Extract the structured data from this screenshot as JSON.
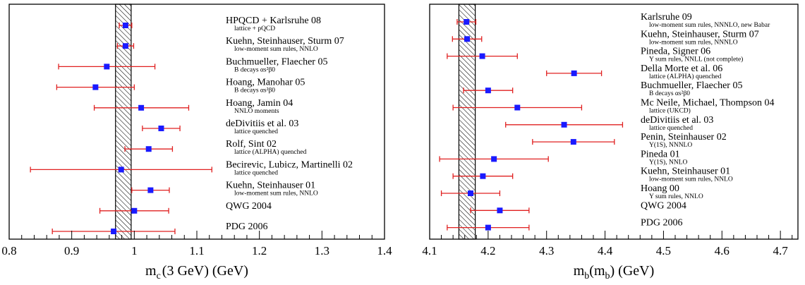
{
  "chart_data": [
    {
      "type": "scatter",
      "xlim": [
        0.8,
        1.4
      ],
      "x_ticks": [
        "0.8",
        "0.9",
        "1",
        "1.1",
        "1.2",
        "1.3",
        "1.4"
      ],
      "x_tick_values": [
        0.8,
        0.9,
        1.0,
        1.1,
        1.2,
        1.3,
        1.4
      ],
      "xlabel_main": "m",
      "xlabel_sub": "c",
      "xlabel_rest": "(3 GeV) (GeV)",
      "band": [
        0.97,
        0.995
      ],
      "grid": false,
      "entries": [
        {
          "label": "HPQCD + Karlsruhe 08",
          "sub": "lattice + pQCD",
          "value": 0.986,
          "low": 0.976,
          "high": 0.996
        },
        {
          "label": "Kuehn, Steinhauser, Sturm 07",
          "sub": "low-moment sum rules, NNLO",
          "value": 0.986,
          "low": 0.973,
          "high": 0.999
        },
        {
          "label": "Buchmueller, Flaecher 05",
          "sub": "B decays αs²β0",
          "value": 0.956,
          "low": 0.879,
          "high": 1.033
        },
        {
          "label": "Hoang, Manohar 05",
          "sub": "B decays αs²β0",
          "value": 0.938,
          "low": 0.876,
          "high": 1.0
        },
        {
          "label": "Hoang, Jamin 04",
          "sub": "NNLO moments",
          "value": 1.011,
          "low": 0.936,
          "high": 1.087
        },
        {
          "label": "deDivitiis et al. 03",
          "sub": "lattice quenched",
          "value": 1.043,
          "low": 1.013,
          "high": 1.073
        },
        {
          "label": "Rolf, Sint 02",
          "sub": "lattice (ALPHA) quenched",
          "value": 1.023,
          "low": 0.985,
          "high": 1.061
        },
        {
          "label": "Becirevic, Lubicz, Martinelli 02",
          "sub": "lattice quenched",
          "value": 0.979,
          "low": 0.834,
          "high": 1.124
        },
        {
          "label": "Kuehn, Steinhauser 01",
          "sub": "low-moment sum rules, NNLO",
          "value": 1.026,
          "low": 0.996,
          "high": 1.056
        },
        {
          "label": "QWG 2004",
          "sub": "",
          "value": 1.0,
          "low": 0.945,
          "high": 1.055
        },
        {
          "label": "PDG 2006",
          "sub": "",
          "value": 0.967,
          "low": 0.869,
          "high": 1.065
        }
      ]
    },
    {
      "type": "scatter",
      "xlim": [
        4.1,
        4.73
      ],
      "x_ticks": [
        "4.1",
        "4.2",
        "4.3",
        "4.4",
        "4.5",
        "4.6",
        "4.7"
      ],
      "x_tick_values": [
        4.1,
        4.2,
        4.3,
        4.4,
        4.5,
        4.6,
        4.7
      ],
      "xlabel_main": "m",
      "xlabel_sub": "b",
      "xlabel_mid": "(m",
      "xlabel_sub2": "b",
      "xlabel_rest": ") (GeV)",
      "band": [
        4.15,
        4.178
      ],
      "grid": false,
      "entries": [
        {
          "label": "Karlsruhe 09",
          "sub": "low-moment sum rules, NNNLO, new Babar",
          "value": 4.163,
          "low": 4.147,
          "high": 4.179
        },
        {
          "label": "Kuehn, Steinhauser, Sturm 07",
          "sub": "low-moment sum rules, NNNLO",
          "value": 4.164,
          "low": 4.139,
          "high": 4.189
        },
        {
          "label": "Pineda, Signer 06",
          "sub": "Υ sum rules, NNLL (not complete)",
          "value": 4.19,
          "low": 4.13,
          "high": 4.25
        },
        {
          "label": "Della Morte et al. 06",
          "sub": "lattice (ALPHA) quenched",
          "value": 4.347,
          "low": 4.3,
          "high": 4.394
        },
        {
          "label": "Buchmueller, Flaecher 05",
          "sub": "B decays αs²β0",
          "value": 4.2,
          "low": 4.158,
          "high": 4.242
        },
        {
          "label": "Mc Neile, Michael, Thompson 04",
          "sub": "lattice (UKCD)",
          "value": 4.25,
          "low": 4.14,
          "high": 4.36
        },
        {
          "label": "deDivitiis et al. 03",
          "sub": "lattice quenched",
          "value": 4.33,
          "low": 4.23,
          "high": 4.43
        },
        {
          "label": "Penin, Steinhauser 02",
          "sub": "Υ(1S), NNNLO",
          "value": 4.346,
          "low": 4.276,
          "high": 4.416
        },
        {
          "label": "Pineda 01",
          "sub": "Υ(1S), NNLO",
          "value": 4.21,
          "low": 4.117,
          "high": 4.303
        },
        {
          "label": "Kuehn, Steinhauser 01",
          "sub": "low-moment sum rules, NNLO",
          "value": 4.191,
          "low": 4.14,
          "high": 4.242
        },
        {
          "label": "Hoang 00",
          "sub": "Υ sum rules, NNLO",
          "value": 4.17,
          "low": 4.12,
          "high": 4.22
        },
        {
          "label": "QWG 2004",
          "sub": "",
          "value": 4.22,
          "low": 4.17,
          "high": 4.27
        },
        {
          "label": "PDG 2006",
          "sub": "",
          "value": 4.2,
          "low": 4.13,
          "high": 4.27
        }
      ]
    }
  ]
}
